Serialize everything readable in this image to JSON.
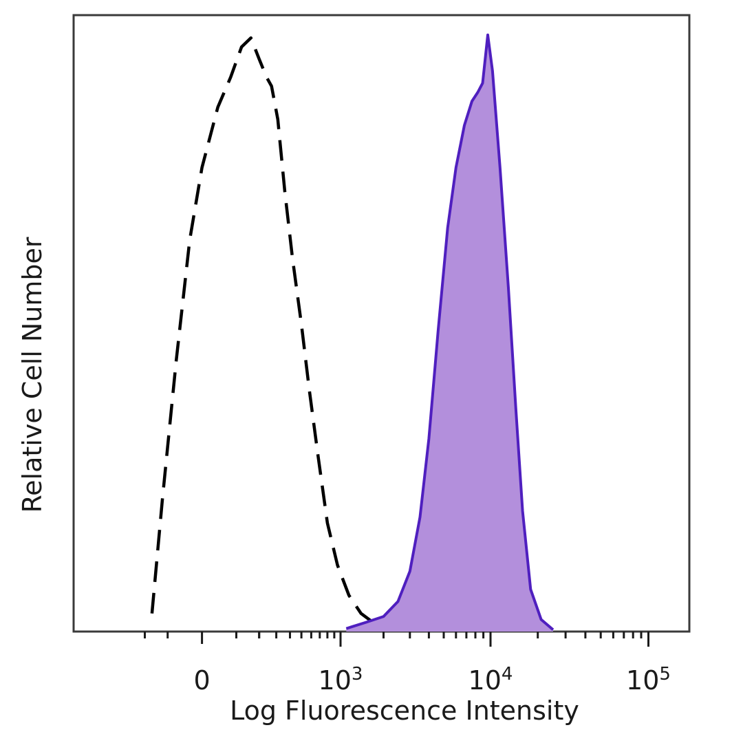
{
  "chart_data": {
    "type": "area",
    "title": "",
    "xlabel": "Log Fluorescence Intensity",
    "ylabel": "Relative Cell Number",
    "x_scale": "biexponential",
    "xlim": [
      -300,
      180000
    ],
    "ylim": [
      0,
      100
    ],
    "grid": false,
    "legend": "none",
    "x_tick_labels": [
      {
        "value": 0,
        "label": "0"
      },
      {
        "value": 1000,
        "base": "10",
        "exp": "3"
      },
      {
        "value": 10000,
        "base": "10",
        "exp": "4"
      },
      {
        "value": 100000,
        "base": "10",
        "exp": "5"
      }
    ],
    "series": [
      {
        "style": "dashed",
        "color": "#000000",
        "filled": false,
        "x": [
          -165,
          -120,
          -70,
          -30,
          0,
          40,
          80,
          120,
          160,
          200,
          240,
          270,
          310,
          360,
          420,
          500,
          580,
          680,
          800,
          950,
          1150,
          1400,
          1700,
          2100
        ],
        "y": [
          3,
          22,
          45,
          65,
          77,
          87,
          92,
          97,
          98.5,
          95,
          92,
          90.5,
          85,
          73,
          62,
          51,
          40,
          29,
          18,
          11,
          6,
          3,
          1.5,
          0.5
        ]
      },
      {
        "style": "solid",
        "color": "#4f1fbf",
        "fill": "#b38fdc",
        "filled": true,
        "x": [
          1100,
          1500,
          2000,
          2500,
          3000,
          3500,
          4000,
          4600,
          5300,
          6000,
          6800,
          7600,
          8300,
          8900,
          9600,
          10300,
          11500,
          13000,
          14500,
          16000,
          18000,
          21000,
          25000
        ],
        "y": [
          0.5,
          1.5,
          2.5,
          5,
          10,
          19,
          32,
          50,
          67,
          77,
          84,
          88,
          89.5,
          91,
          99,
          93,
          77,
          57,
          37,
          20,
          7,
          2,
          0.3
        ]
      }
    ]
  }
}
